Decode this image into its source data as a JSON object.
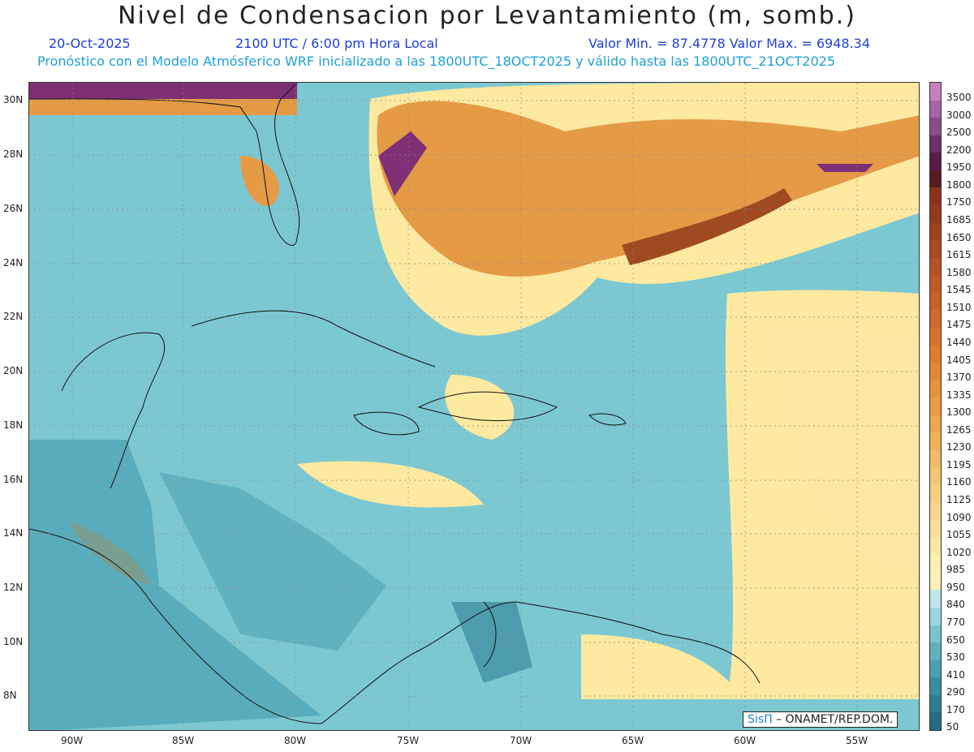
{
  "header": {
    "title": "Nivel de Condensacion por Levantamiento (m, somb.)",
    "date": "20-Oct-2025",
    "time": "2100 UTC / 6:00 pm Hora Local",
    "minmax": "Valor Min. = 87.4778   Valor Max. = 6948.34",
    "description": "Pronóstico con el Modelo Atmósferico WRF inicializado a las 1800UTC_18OCT2025 y válido hasta las  1800UTC_21OCT2025"
  },
  "map": {
    "lat_labels": [
      "30N",
      "28N",
      "26N",
      "24N",
      "22N",
      "20N",
      "18N",
      "16N",
      "14N",
      "12N",
      "10N",
      "8N"
    ],
    "lon_labels": [
      "90W",
      "85W",
      "80W",
      "75W",
      "70W",
      "65W",
      "60W",
      "55W"
    ],
    "colors": {
      "low": "#2e7f95",
      "mid": "#7cc8d2",
      "yellow": "#fde9a0",
      "orange": "#e59a46",
      "brown": "#a04a22",
      "purple": "#7e2f75"
    }
  },
  "colorbar": {
    "levels": [
      "3500",
      "3000",
      "2500",
      "2200",
      "1950",
      "1800",
      "1750",
      "1685",
      "1650",
      "1615",
      "1580",
      "1545",
      "1510",
      "1475",
      "1440",
      "1405",
      "1370",
      "1335",
      "1300",
      "1265",
      "1230",
      "1195",
      "1160",
      "1125",
      "1090",
      "1055",
      "1020",
      "985",
      "950",
      "840",
      "770",
      "650",
      "530",
      "410",
      "290",
      "170",
      "50"
    ],
    "colors": [
      "#c77fc1",
      "#a862a7",
      "#8e4a8c",
      "#6e2e68",
      "#5b1a4a",
      "#5a1a24",
      "#8c3419",
      "#97391b",
      "#a2421d",
      "#ac4a20",
      "#b65322",
      "#be5b24",
      "#c56326",
      "#cd6b29",
      "#d5742c",
      "#dc7d30",
      "#e38735",
      "#e8923c",
      "#ec9c44",
      "#efa64e",
      "#f1b05a",
      "#f3ba66",
      "#f5c473",
      "#f7cd80",
      "#f9d68d",
      "#fadf99",
      "#fce7a5",
      "#fdefb1",
      "#feefb5",
      "#bfe6ec",
      "#9ad6e0",
      "#7ac4d0",
      "#5fb1c0",
      "#4a9fb1",
      "#3a8ea3",
      "#2d7e95",
      "#216f87"
    ]
  },
  "credit": {
    "sis": "SisΠ",
    "rest": "– ONAMET/REP.DOM."
  }
}
